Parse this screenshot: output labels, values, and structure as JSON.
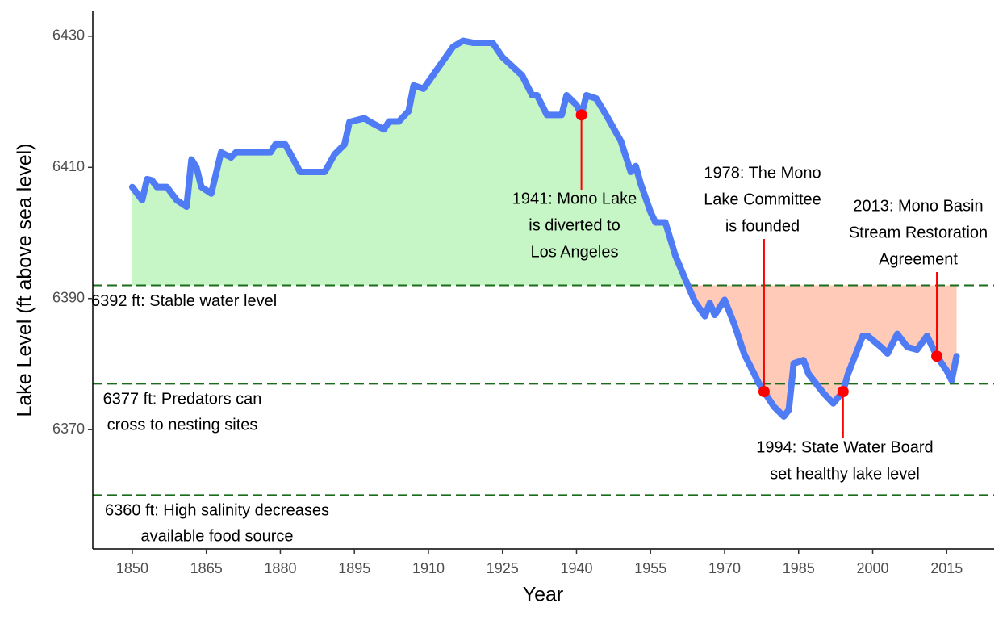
{
  "chart_data": {
    "type": "line",
    "x_label": "Year",
    "y_label": "Lake Level (ft above sea level)",
    "xlim": [
      1842,
      2024.6
    ],
    "ylim": [
      6351.8,
      6433.8
    ],
    "xticks": [
      1850,
      1865,
      1880,
      1895,
      1910,
      1925,
      1940,
      1955,
      1970,
      1985,
      2000,
      2015
    ],
    "yticks": [
      6370,
      6390,
      6410,
      6430
    ],
    "baseline": 6392,
    "color": "#4f7cf5",
    "above_color": "#c6f5c6",
    "below_color": "#ffcbb8",
    "x": [
      1850,
      1852,
      1853,
      1854,
      1855,
      1857,
      1859,
      1861,
      1862,
      1863,
      1864,
      1866,
      1868,
      1870,
      1871,
      1878,
      1879,
      1881,
      1884,
      1889,
      1891,
      1893,
      1894,
      1897,
      1898,
      1901,
      1902,
      1904,
      1906,
      1907,
      1909,
      1912,
      1915,
      1917,
      1919,
      1923,
      1925,
      1929,
      1931,
      1932,
      1934,
      1937,
      1938,
      1940,
      1941,
      1942,
      1944,
      1946,
      1949,
      1951,
      1952,
      1953,
      1955,
      1956,
      1958,
      1960,
      1962,
      1964,
      1966,
      1967,
      1968,
      1970,
      1972,
      1974,
      1977,
      1978,
      1980,
      1982,
      1983,
      1984,
      1986,
      1987,
      1990,
      1992,
      1994,
      1995,
      1998,
      1999,
      2002,
      2003,
      2005,
      2007,
      2009,
      2011,
      2013,
      2015,
      2016,
      2017
    ],
    "values": [
      6407,
      6405,
      6408.2,
      6408,
      6407,
      6407,
      6405,
      6404,
      6411.2,
      6410,
      6407,
      6406,
      6412.3,
      6411.5,
      6412.3,
      6412.3,
      6413.5,
      6413.5,
      6409.3,
      6409.3,
      6412,
      6413.5,
      6416.9,
      6417.5,
      6417,
      6415.8,
      6417,
      6417,
      6418.6,
      6422.5,
      6422,
      6425.2,
      6428.4,
      6429.3,
      6429,
      6429,
      6426.8,
      6424,
      6421,
      6421,
      6418,
      6418,
      6421,
      6419.5,
      6418,
      6421,
      6420.5,
      6418,
      6414,
      6409.3,
      6410.2,
      6407.5,
      6403.2,
      6401.6,
      6401.6,
      6396.6,
      6393,
      6389.5,
      6387.3,
      6389.3,
      6387.5,
      6389.8,
      6386,
      6381.5,
      6377,
      6375.8,
      6373.5,
      6372,
      6373,
      6380.1,
      6380.6,
      6378.5,
      6375.6,
      6374,
      6375.8,
      6378.5,
      6384.3,
      6384.3,
      6382.4,
      6381.6,
      6384.6,
      6382.6,
      6382.2,
      6384.3,
      6381.2,
      6379,
      6377.5,
      6381.2
    ],
    "reference_lines": [
      {
        "value": 6392,
        "label": [
          "6392 ft: Stable water level"
        ]
      },
      {
        "value": 6377,
        "label": [
          "6377 ft: Predators can",
          "cross to nesting sites"
        ]
      },
      {
        "value": 6360,
        "label": [
          "6360 ft: High salinity decreases",
          "available food source"
        ]
      }
    ],
    "reference_color": "#1a6b1a",
    "annotations": [
      {
        "year": 1941,
        "level": 6418,
        "text": [
          "1941: Mono Lake",
          "is diverted to",
          "Los Angeles"
        ]
      },
      {
        "year": 1978,
        "level": 6375.8,
        "text": [
          "1978: The Mono",
          "Lake Committee",
          "is founded"
        ]
      },
      {
        "year": 1994,
        "level": 6375.8,
        "text": [
          "1994: State Water Board",
          "set healthy lake level"
        ]
      },
      {
        "year": 2013,
        "level": 6381.2,
        "text": [
          "2013: Mono Basin",
          "Stream Restoration",
          "Agreement"
        ]
      }
    ],
    "annotation_color": "#ff0000"
  }
}
